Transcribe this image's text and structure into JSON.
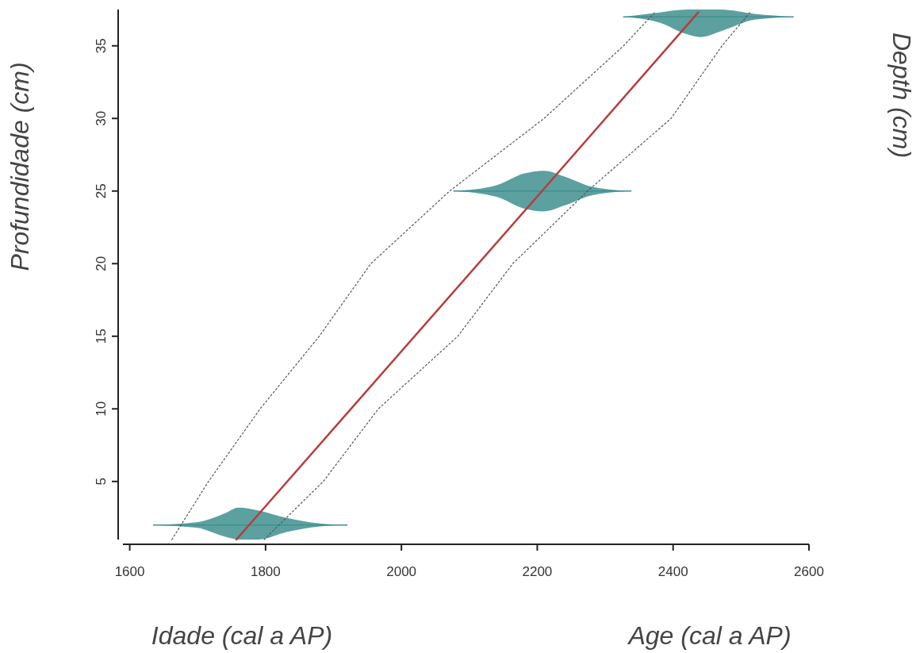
{
  "chart_data": {
    "type": "line",
    "xlabel": "Idade (cal a AP)",
    "ylabel": "Profundidade (cm)",
    "annotations": [
      "Age (cal a AP)",
      "Depth (cm)"
    ],
    "xlim": [
      1590,
      2600
    ],
    "xticks": [
      1600,
      1800,
      2000,
      2200,
      2400,
      2600
    ],
    "ylim": [
      1,
      37.5
    ],
    "yticks": [
      5,
      10,
      15,
      20,
      25,
      30,
      35
    ],
    "grid": false,
    "series": [
      {
        "type": "line",
        "line_style": "solid",
        "color": "#3f8f8f",
        "x": [
          1635,
          1700,
          1740,
          1760,
          1790,
          1830,
          1880,
          1920
        ],
        "values": [
          2,
          2,
          2,
          2,
          2,
          2,
          2,
          2
        ],
        "lower": [
          2,
          1.8,
          1.2,
          1,
          1,
          1.5,
          1.9,
          2
        ],
        "upper": [
          2,
          2.2,
          2.8,
          3.2,
          3,
          2.5,
          2.1,
          2
        ]
      },
      {
        "type": "line",
        "line_style": "solid",
        "color": "#3f8f8f",
        "x": [
          2077,
          2140,
          2180,
          2210,
          2240,
          2280,
          2338
        ],
        "values": [
          25,
          25,
          25,
          25,
          25,
          25,
          25
        ],
        "lower": [
          25,
          24.6,
          23.8,
          23.6,
          24,
          24.7,
          25
        ],
        "upper": [
          25,
          25.4,
          26.2,
          26.4,
          26,
          25.3,
          25
        ]
      },
      {
        "type": "line",
        "line_style": "solid",
        "color": "#3f8f8f",
        "x": [
          2327,
          2380,
          2420,
          2440,
          2470,
          2520,
          2577
        ],
        "values": [
          37,
          37,
          37,
          37,
          37,
          37,
          37
        ],
        "lower": [
          37,
          36.6,
          35.8,
          35.6,
          36,
          36.8,
          37
        ],
        "upper": [
          37,
          37.3,
          37.5,
          37.5,
          37.5,
          37.2,
          37
        ]
      },
      {
        "type": "line",
        "color": "#555555",
        "line_style": "dotted",
        "x": [
          1662,
          1716,
          1792,
          1879,
          1955,
          2071,
          2210,
          2327,
          2373
        ],
        "values": [
          1,
          5,
          10,
          15,
          20,
          25,
          30,
          35,
          37.3
        ]
      },
      {
        "type": "line",
        "color": "#555555",
        "line_style": "dotted",
        "x": [
          1798,
          1885,
          1966,
          2083,
          2164,
          2274,
          2397,
          2472,
          2513
        ],
        "values": [
          1,
          5,
          10,
          15,
          20,
          25,
          30,
          35,
          37.3
        ]
      },
      {
        "type": "line",
        "color": "#b83c3c",
        "line_style": "solid",
        "x": [
          1757,
          2207,
          2437
        ],
        "values": [
          1,
          25,
          37.3
        ]
      }
    ]
  }
}
